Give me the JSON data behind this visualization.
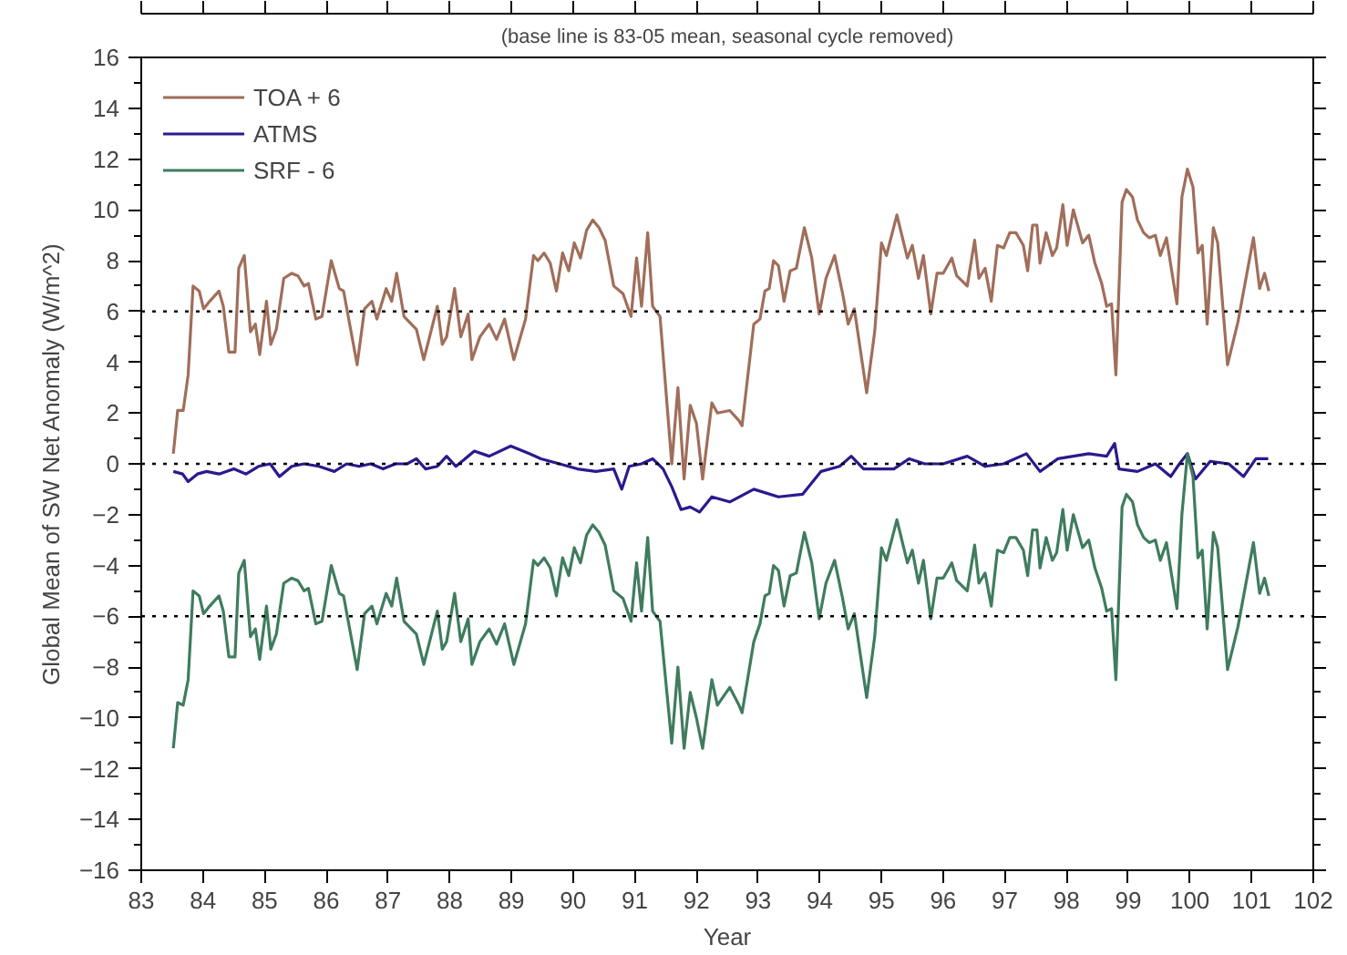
{
  "chart_data": {
    "type": "line",
    "subtitle": "(base line is 83-05 mean, seasonal cycle removed)",
    "xlabel": "Year",
    "ylabel": "Global Mean of SW Net Anomaly (W/m^2)",
    "xlim": [
      83,
      102
    ],
    "xticks": [
      83,
      84,
      85,
      86,
      87,
      88,
      89,
      90,
      91,
      92,
      93,
      94,
      95,
      96,
      97,
      98,
      99,
      100,
      101,
      102
    ],
    "ylim": [
      -16,
      16
    ],
    "yticks": [
      -16,
      -14,
      -12,
      -10,
      -8,
      -6,
      -4,
      -2,
      0,
      2,
      4,
      6,
      8,
      10,
      12,
      14,
      16
    ],
    "legend": "top left",
    "ref_lines": [
      {
        "axis": "y",
        "value": 6,
        "color": "#000000",
        "line_style": "dotted"
      },
      {
        "axis": "y",
        "value": 0,
        "color": "#000000",
        "line_style": "dotted"
      },
      {
        "axis": "y",
        "value": -6,
        "color": "#000000",
        "line_style": "dotted"
      }
    ],
    "series": [
      {
        "name": "TOA + 6",
        "color": "#a06e5a",
        "x": [
          83.52,
          83.59,
          83.68,
          83.76,
          83.84,
          83.94,
          84.01,
          84.11,
          84.26,
          84.33,
          84.42,
          84.52,
          84.58,
          84.67,
          84.77,
          84.85,
          84.92,
          85.03,
          85.1,
          85.19,
          85.31,
          85.44,
          85.54,
          85.64,
          85.71,
          85.83,
          85.93,
          86.08,
          86.21,
          86.28,
          86.5,
          86.62,
          86.74,
          86.82,
          86.97,
          87.06,
          87.14,
          87.26,
          87.46,
          87.58,
          87.8,
          87.88,
          87.95,
          88.08,
          88.18,
          88.3,
          88.36,
          88.49,
          88.64,
          88.76,
          88.89,
          89.04,
          89.23,
          89.36,
          89.43,
          89.53,
          89.63,
          89.73,
          89.83,
          89.93,
          90.02,
          90.12,
          90.22,
          90.32,
          90.42,
          90.52,
          90.66,
          90.81,
          90.94,
          91.03,
          91.11,
          91.21,
          91.29,
          91.41,
          91.6,
          91.7,
          91.8,
          91.9,
          92.0,
          92.1,
          92.25,
          92.34,
          92.54,
          92.69,
          92.74,
          92.93,
          93.03,
          93.11,
          93.18,
          93.25,
          93.33,
          93.42,
          93.52,
          93.62,
          93.75,
          93.87,
          93.99,
          94.1,
          94.24,
          94.37,
          94.46,
          94.56,
          94.76,
          94.89,
          95.0,
          95.08,
          95.25,
          95.35,
          95.42,
          95.5,
          95.6,
          95.68,
          95.8,
          95.9,
          96.0,
          96.14,
          96.22,
          96.39,
          96.51,
          96.58,
          96.68,
          96.78,
          96.88,
          96.98,
          97.08,
          97.18,
          97.3,
          97.37,
          97.45,
          97.52,
          97.57,
          97.67,
          97.77,
          97.84,
          97.94,
          98.01,
          98.11,
          98.26,
          98.36,
          98.46,
          98.57,
          98.65,
          98.73,
          98.8,
          98.9,
          98.97,
          99.07,
          99.15,
          99.25,
          99.34,
          99.44,
          99.52,
          99.62,
          99.79,
          99.87,
          99.96,
          100.05,
          100.13,
          100.2,
          100.28,
          100.38,
          100.45,
          100.61,
          100.78,
          101.03,
          101.13,
          101.21,
          101.28
        ],
        "values": [
          0.4,
          2.1,
          2.1,
          3.5,
          7.0,
          6.8,
          6.1,
          6.4,
          6.8,
          6.2,
          4.4,
          4.4,
          7.7,
          8.2,
          5.2,
          5.5,
          4.3,
          6.4,
          4.7,
          5.3,
          7.3,
          7.5,
          7.4,
          7.0,
          7.1,
          5.7,
          5.8,
          8.0,
          6.9,
          6.8,
          3.9,
          6.1,
          6.4,
          5.7,
          6.9,
          6.4,
          7.5,
          5.8,
          5.3,
          4.1,
          6.2,
          4.7,
          5.0,
          6.9,
          5.0,
          5.9,
          4.1,
          5.0,
          5.5,
          4.9,
          5.7,
          4.1,
          5.7,
          8.2,
          8.0,
          8.3,
          7.9,
          6.8,
          8.3,
          7.6,
          8.7,
          8.1,
          9.2,
          9.6,
          9.3,
          8.8,
          7.0,
          6.7,
          5.8,
          8.1,
          6.2,
          9.1,
          6.2,
          5.8,
          0,
          3.0,
          -0.6,
          2.3,
          1.6,
          -0.6,
          2.4,
          2.0,
          2.1,
          1.7,
          1.5,
          5.5,
          5.7,
          6.8,
          6.9,
          8.0,
          7.8,
          6.4,
          7.6,
          7.7,
          9.3,
          8.1,
          5.9,
          7.3,
          8.2,
          6.7,
          5.5,
          6.1,
          2.8,
          5.2,
          8.7,
          8.2,
          9.8,
          8.8,
          8.1,
          8.6,
          7.3,
          8.2,
          5.9,
          7.5,
          7.5,
          8.1,
          7.4,
          7.0,
          8.8,
          7.3,
          7.7,
          6.4,
          8.6,
          8.5,
          9.1,
          9.1,
          8.6,
          7.6,
          9.4,
          9.4,
          7.9,
          9.1,
          8.2,
          8.5,
          10.2,
          8.6,
          10.0,
          8.7,
          9.0,
          7.9,
          7.1,
          6.2,
          6.3,
          3.5,
          10.3,
          10.8,
          10.5,
          9.6,
          9.1,
          8.9,
          9.0,
          8.2,
          8.9,
          6.3,
          10.5,
          11.6,
          10.9,
          8.3,
          8.6,
          5.5,
          9.3,
          8.7,
          3.9,
          5.6,
          8.9,
          6.9,
          7.5,
          6.8
        ]
      },
      {
        "name": "ATMS",
        "color": "#2a1a8f",
        "x": [
          83.52,
          83.67,
          83.76,
          83.91,
          84.06,
          84.26,
          84.5,
          84.7,
          84.9,
          85.09,
          85.24,
          85.44,
          85.64,
          85.88,
          86.13,
          86.33,
          86.53,
          86.72,
          86.92,
          87.12,
          87.31,
          87.46,
          87.61,
          87.8,
          87.95,
          88.1,
          88.4,
          88.64,
          88.99,
          89.29,
          89.48,
          89.78,
          90.07,
          90.37,
          90.66,
          90.79,
          90.91,
          91.11,
          91.29,
          91.46,
          91.6,
          91.75,
          91.9,
          92.05,
          92.25,
          92.54,
          92.93,
          93.33,
          93.72,
          94.02,
          94.32,
          94.51,
          94.71,
          95.2,
          95.45,
          95.7,
          96.0,
          96.39,
          96.68,
          96.98,
          97.35,
          97.57,
          97.86,
          98.36,
          98.65,
          98.78,
          98.85,
          99.15,
          99.44,
          99.69,
          99.83,
          99.96,
          100.09,
          100.33,
          100.63,
          100.87,
          101.07,
          101.27
        ],
        "values": [
          -0.3,
          -0.4,
          -0.7,
          -0.4,
          -0.3,
          -0.4,
          -0.2,
          -0.4,
          -0.1,
          0,
          -0.5,
          -0.1,
          0,
          -0.1,
          -0.3,
          0,
          -0.1,
          0,
          -0.2,
          0,
          0,
          0.2,
          -0.2,
          -0.1,
          0.3,
          -0.1,
          0.5,
          0.3,
          0.7,
          0.4,
          0.2,
          0,
          -0.2,
          -0.3,
          -0.2,
          -1.0,
          -0.1,
          0,
          0.2,
          -0.2,
          -0.9,
          -1.8,
          -1.7,
          -1.9,
          -1.3,
          -1.5,
          -1.0,
          -1.3,
          -1.2,
          -0.3,
          -0.1,
          0.3,
          -0.2,
          -0.2,
          0.2,
          0,
          0,
          0.3,
          -0.1,
          0,
          0.4,
          -0.3,
          0.2,
          0.4,
          0.3,
          0.8,
          -0.2,
          -0.3,
          0,
          -0.5,
          0,
          0.4,
          -0.6,
          0.1,
          0,
          -0.5,
          0.2,
          0.2
        ]
      },
      {
        "name": "SRF - 6",
        "color": "#3f7c5e",
        "x": [
          83.52,
          83.59,
          83.68,
          83.76,
          83.84,
          83.94,
          84.01,
          84.11,
          84.26,
          84.33,
          84.42,
          84.52,
          84.58,
          84.67,
          84.77,
          84.85,
          84.92,
          85.03,
          85.1,
          85.19,
          85.31,
          85.44,
          85.54,
          85.64,
          85.71,
          85.83,
          85.93,
          86.08,
          86.21,
          86.28,
          86.5,
          86.62,
          86.74,
          86.82,
          86.97,
          87.06,
          87.14,
          87.26,
          87.46,
          87.58,
          87.8,
          87.88,
          87.95,
          88.08,
          88.18,
          88.3,
          88.36,
          88.49,
          88.64,
          88.76,
          88.89,
          89.04,
          89.23,
          89.36,
          89.43,
          89.53,
          89.63,
          89.73,
          89.83,
          89.93,
          90.02,
          90.12,
          90.22,
          90.32,
          90.42,
          90.52,
          90.66,
          90.81,
          90.94,
          91.03,
          91.11,
          91.21,
          91.29,
          91.41,
          91.6,
          91.7,
          91.8,
          91.9,
          92.0,
          92.1,
          92.25,
          92.34,
          92.54,
          92.69,
          92.74,
          92.93,
          93.03,
          93.11,
          93.18,
          93.25,
          93.33,
          93.42,
          93.52,
          93.62,
          93.75,
          93.87,
          93.99,
          94.1,
          94.24,
          94.37,
          94.46,
          94.56,
          94.76,
          94.89,
          95.0,
          95.08,
          95.25,
          95.35,
          95.42,
          95.5,
          95.6,
          95.68,
          95.8,
          95.9,
          96.0,
          96.14,
          96.22,
          96.39,
          96.51,
          96.58,
          96.68,
          96.78,
          96.88,
          96.98,
          97.08,
          97.18,
          97.3,
          97.37,
          97.45,
          97.52,
          97.57,
          97.67,
          97.77,
          97.84,
          97.94,
          98.01,
          98.11,
          98.26,
          98.36,
          98.46,
          98.57,
          98.65,
          98.73,
          98.8,
          98.9,
          98.97,
          99.07,
          99.15,
          99.25,
          99.34,
          99.44,
          99.52,
          99.62,
          99.79,
          99.87,
          99.96,
          100.05,
          100.13,
          100.2,
          100.28,
          100.38,
          100.45,
          100.61,
          100.78,
          101.03,
          101.13,
          101.21,
          101.28
        ],
        "values": [
          -11.2,
          -9.4,
          -9.5,
          -8.5,
          -5.0,
          -5.2,
          -5.9,
          -5.6,
          -5.2,
          -5.8,
          -7.6,
          -7.6,
          -4.3,
          -3.8,
          -6.8,
          -6.5,
          -7.7,
          -5.6,
          -7.3,
          -6.7,
          -4.7,
          -4.5,
          -4.6,
          -5.0,
          -4.9,
          -6.3,
          -6.2,
          -4.0,
          -5.1,
          -5.2,
          -8.1,
          -5.9,
          -5.6,
          -6.3,
          -5.1,
          -5.6,
          -4.5,
          -6.2,
          -6.7,
          -7.9,
          -5.8,
          -7.3,
          -7.0,
          -5.1,
          -7.0,
          -6.1,
          -7.9,
          -7.0,
          -6.5,
          -7.1,
          -6.3,
          -7.9,
          -6.3,
          -3.8,
          -4.0,
          -3.7,
          -4.1,
          -5.2,
          -3.7,
          -4.4,
          -3.3,
          -3.9,
          -2.8,
          -2.4,
          -2.7,
          -3.2,
          -5.0,
          -5.3,
          -6.2,
          -3.9,
          -5.8,
          -2.9,
          -5.8,
          -6.2,
          -11.0,
          -8.0,
          -11.2,
          -9.0,
          -10.0,
          -11.2,
          -8.5,
          -9.5,
          -8.8,
          -9.5,
          -9.8,
          -7.0,
          -6.3,
          -5.2,
          -5.1,
          -4.0,
          -4.2,
          -5.6,
          -4.4,
          -4.3,
          -2.7,
          -3.9,
          -6.1,
          -4.7,
          -3.8,
          -5.3,
          -6.5,
          -5.9,
          -9.2,
          -6.8,
          -3.3,
          -3.8,
          -2.2,
          -3.2,
          -3.9,
          -3.4,
          -4.7,
          -3.8,
          -6.1,
          -4.5,
          -4.5,
          -3.9,
          -4.6,
          -5.0,
          -3.2,
          -4.7,
          -4.3,
          -5.6,
          -3.4,
          -3.5,
          -2.9,
          -2.9,
          -3.4,
          -4.4,
          -2.6,
          -2.6,
          -4.1,
          -2.9,
          -3.8,
          -3.5,
          -1.8,
          -3.4,
          -2.0,
          -3.3,
          -3.0,
          -4.1,
          -4.9,
          -5.8,
          -5.7,
          -8.5,
          -1.7,
          -1.2,
          -1.5,
          -2.4,
          -2.9,
          -3.1,
          -3.0,
          -3.8,
          -3.1,
          -5.7,
          -2.0,
          0.4,
          -0.5,
          -3.7,
          -3.4,
          -6.5,
          -2.7,
          -3.3,
          -8.1,
          -6.4,
          -3.1,
          -5.1,
          -4.5,
          -5.2
        ]
      }
    ]
  }
}
